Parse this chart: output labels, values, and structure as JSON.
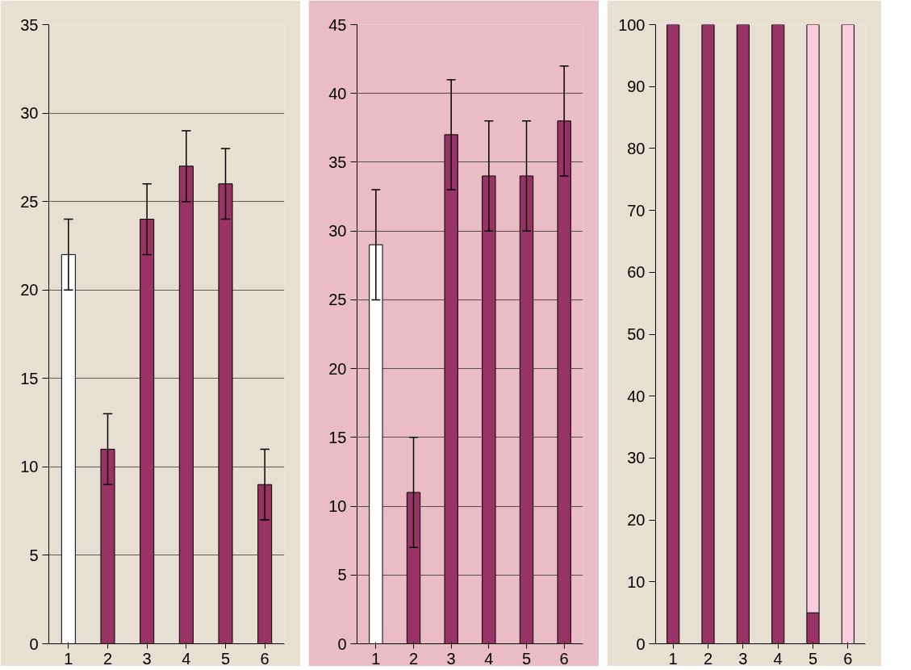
{
  "chart_data": [
    {
      "type": "bar",
      "categories": [
        "1",
        "2",
        "3",
        "4",
        "5",
        "6"
      ],
      "values": [
        22,
        11,
        24,
        27,
        26,
        9
      ],
      "colors": [
        "#ffffff",
        "#993366",
        "#993366",
        "#993366",
        "#993366",
        "#993366"
      ],
      "errors": [
        2,
        2,
        2,
        2,
        2,
        2
      ],
      "ylim": [
        0,
        35
      ],
      "yticks": [
        0,
        5,
        10,
        15,
        20,
        25,
        30,
        35
      ],
      "grid": "y"
    },
    {
      "type": "bar",
      "categories": [
        "1",
        "2",
        "3",
        "4",
        "5",
        "6"
      ],
      "values": [
        29,
        11,
        37,
        34,
        34,
        38
      ],
      "colors": [
        "#ffffff",
        "#993366",
        "#993366",
        "#993366",
        "#993366",
        "#993366"
      ],
      "errors": [
        4,
        4,
        4,
        4,
        4,
        4
      ],
      "ylim": [
        0,
        45
      ],
      "yticks": [
        0,
        5,
        10,
        15,
        20,
        25,
        30,
        35,
        40,
        45
      ],
      "grid": "y"
    },
    {
      "type": "bar",
      "stacked": true,
      "categories": [
        "1",
        "2",
        "3",
        "4",
        "5",
        "6"
      ],
      "series": [
        {
          "color": "#993366",
          "values": [
            100,
            100,
            100,
            100,
            5,
            0
          ]
        },
        {
          "color": "#ffccdd",
          "values": [
            0,
            0,
            0,
            0,
            95,
            100
          ]
        }
      ],
      "ylim": [
        0,
        100
      ],
      "yticks": [
        0,
        10,
        20,
        30,
        40,
        50,
        60,
        70,
        80,
        90,
        100
      ],
      "grid": false
    }
  ]
}
